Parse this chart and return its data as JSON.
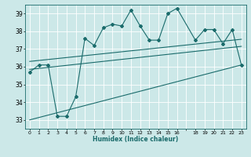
{
  "xlabel": "Humidex (Indice chaleur)",
  "bg_color": "#cce8e8",
  "line_color": "#1a6b6b",
  "grid_color": "#ffffff",
  "xtick_positions": [
    0,
    1,
    2,
    3,
    4,
    5,
    6,
    7,
    8,
    9,
    10,
    11,
    12,
    13,
    14,
    15,
    16,
    17,
    18,
    19,
    20,
    21,
    22,
    23
  ],
  "xtick_labels": [
    "0",
    "1",
    "2",
    "3",
    "4",
    "5",
    "6",
    "7",
    "8",
    "9",
    "10",
    "11",
    "12",
    "13",
    "14",
    "15",
    "16",
    "",
    "18",
    "19",
    "20",
    "21",
    "22",
    "23"
  ],
  "yticks": [
    33,
    34,
    35,
    36,
    37,
    38,
    39
  ],
  "ylim": [
    32.5,
    39.5
  ],
  "xlim": [
    -0.5,
    23.5
  ],
  "main_line_x": [
    0,
    1,
    2,
    3,
    4,
    5,
    6,
    7,
    8,
    9,
    10,
    11,
    12,
    13,
    14,
    15,
    16,
    18,
    19,
    20,
    21,
    22,
    23
  ],
  "main_line_y": [
    35.7,
    36.1,
    36.1,
    33.2,
    33.2,
    34.3,
    37.6,
    37.2,
    38.2,
    38.4,
    38.3,
    39.2,
    38.3,
    37.5,
    37.5,
    39.0,
    39.3,
    37.5,
    38.1,
    38.1,
    37.3,
    38.1,
    36.1
  ],
  "low_line_x": [
    0,
    23
  ],
  "low_line_y": [
    33.0,
    36.1
  ],
  "mid_line_x": [
    0,
    23
  ],
  "mid_line_y": [
    35.85,
    37.15
  ],
  "high_line_x": [
    0,
    23
  ],
  "high_line_y": [
    36.3,
    37.55
  ]
}
